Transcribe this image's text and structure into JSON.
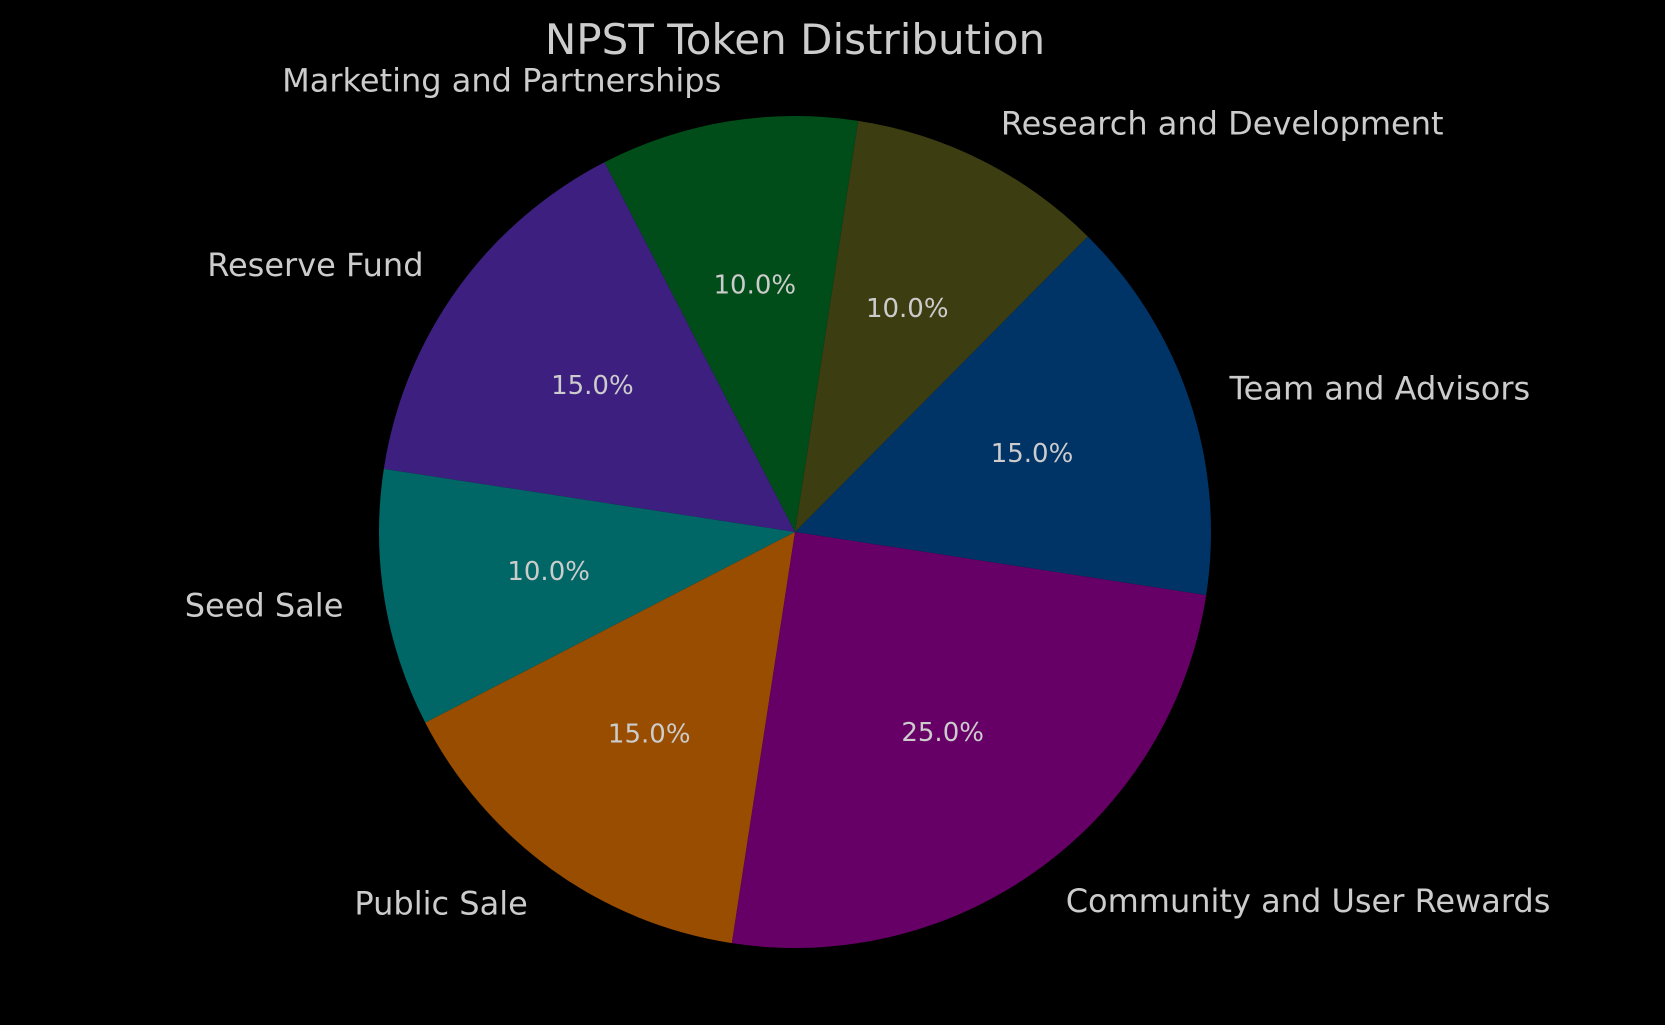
{
  "chart_data": {
    "type": "pie",
    "title": "NPST Token Distribution",
    "categories": [
      "Team and Advisors",
      "Research and Development",
      "Marketing and Partnerships",
      "Reserve Fund",
      "Seed Sale",
      "Public Sale",
      "Community and User Rewards"
    ],
    "values": [
      15,
      10,
      10,
      15,
      10,
      15,
      25
    ],
    "value_labels": [
      "15.0%",
      "10.0%",
      "10.0%",
      "15.0%",
      "10.0%",
      "15.0%",
      "25.0%"
    ],
    "colors": [
      "#003366",
      "#3d3d12",
      "#004d19",
      "#3d1f80",
      "#006666",
      "#994d00",
      "#660066"
    ],
    "background": "#000000",
    "text_color": "#cccccc",
    "legend": "none",
    "direction": "counterclockwise"
  }
}
